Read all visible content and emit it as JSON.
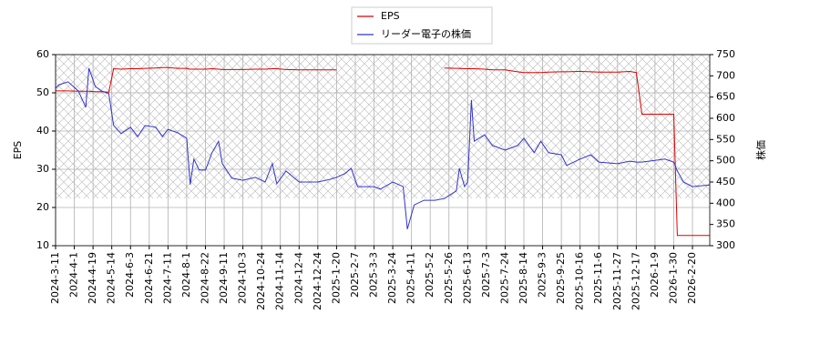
{
  "chart_data": {
    "type": "line",
    "x": [
      "2024-03-11",
      "2024-03-15",
      "2024-03-25",
      "2024-04-05",
      "2024-04-12",
      "2024-04-15",
      "2024-04-22",
      "2024-05-01",
      "2024-05-10",
      "2024-05-16",
      "2024-05-24",
      "2024-06-03",
      "2024-06-10",
      "2024-06-17",
      "2024-06-28",
      "2024-07-05",
      "2024-07-11",
      "2024-07-22",
      "2024-08-01",
      "2024-08-05",
      "2024-08-09",
      "2024-08-15",
      "2024-08-22",
      "2024-08-29",
      "2024-09-05",
      "2024-09-09",
      "2024-09-20",
      "2024-10-03",
      "2024-10-17",
      "2024-10-28",
      "2024-11-05",
      "2024-11-10",
      "2024-11-20",
      "2024-12-04",
      "2024-12-24",
      "2025-01-10",
      "2025-01-20",
      "2025-01-28",
      "2025-02-03",
      "2025-02-10",
      "2025-03-03",
      "2025-03-10",
      "2025-03-24",
      "2025-04-03",
      "2025-04-07",
      "2025-04-14",
      "2025-04-25",
      "2025-05-08",
      "2025-05-20",
      "2025-06-02",
      "2025-06-05",
      "2025-06-10",
      "2025-06-13",
      "2025-06-17",
      "2025-06-20",
      "2025-07-01",
      "2025-07-10",
      "2025-07-24",
      "2025-08-07",
      "2025-08-14",
      "2025-08-25",
      "2025-09-01",
      "2025-09-10",
      "2025-09-25",
      "2025-10-01",
      "2025-10-16",
      "2025-10-28",
      "2025-11-06",
      "2025-11-27",
      "2025-12-10",
      "2025-12-17",
      "2025-12-24",
      "2026-01-09",
      "2026-01-20",
      "2026-01-30",
      "2026-02-03",
      "2026-02-10",
      "2026-02-20",
      "2026-03-11"
    ],
    "series": [
      {
        "name": "EPS",
        "color": "#dd0000",
        "axis": "y",
        "values": [
          50.5,
          50.5,
          50.5,
          50.4,
          50.4,
          50.4,
          50.3,
          50.3,
          50.2,
          56.3,
          56.2,
          56.3,
          56.3,
          56.4,
          56.5,
          56.6,
          56.6,
          56.4,
          56.4,
          56.2,
          56.2,
          56.2,
          56.2,
          56.3,
          56.2,
          56.1,
          56.1,
          56.1,
          56.2,
          56.2,
          56.3,
          56.3,
          56.1,
          56.0,
          56.0,
          56.0,
          56.0,
          null,
          null,
          null,
          null,
          null,
          null,
          null,
          null,
          null,
          null,
          null,
          56.5,
          56.4,
          56.4,
          56.3,
          56.3,
          56.3,
          56.3,
          56.2,
          56.0,
          56.0,
          55.5,
          55.3,
          55.3,
          55.3,
          55.4,
          55.5,
          55.5,
          55.6,
          55.5,
          55.4,
          55.4,
          55.6,
          55.3,
          44.4,
          44.4,
          44.4,
          44.4,
          12.7,
          12.7,
          12.7,
          12.7
        ]
      },
      {
        "name": "リーダー電子の株価",
        "color": "#3333cc",
        "axis": "y2",
        "values": [
          671,
          679,
          686,
          664,
          626,
          718,
          675,
          664,
          658,
          583,
          564,
          579,
          557,
          583,
          579,
          557,
          574,
          566,
          553,
          444,
          504,
          478,
          478,
          519,
          546,
          493,
          459,
          454,
          461,
          450,
          493,
          446,
          476,
          450,
          450,
          456,
          461,
          470,
          482,
          439,
          439,
          433,
          450,
          439,
          339,
          396,
          407,
          407,
          411,
          429,
          482,
          439,
          450,
          643,
          546,
          561,
          536,
          525,
          536,
          553,
          519,
          546,
          519,
          514,
          489,
          504,
          514,
          497,
          493,
          499,
          497,
          497,
          501,
          504,
          497,
          476,
          450,
          439,
          443
        ]
      }
    ],
    "ylabel": "EPS",
    "y2label": "株価",
    "ylim": [
      10,
      60
    ],
    "yticks": [
      10,
      20,
      30,
      40,
      50,
      60
    ],
    "y2lim": [
      300,
      750
    ],
    "y2ticks": [
      300,
      350,
      400,
      450,
      500,
      550,
      600,
      650,
      700,
      750
    ],
    "xlim": [
      "2024-03-11",
      "2026-03-11"
    ],
    "xticks": [
      {
        "value": "2024-03-11",
        "label": "2024-3-11"
      },
      {
        "value": "2024-04-01",
        "label": "2024-4-1"
      },
      {
        "value": "2024-04-19",
        "label": "2024-4-19"
      },
      {
        "value": "2024-05-14",
        "label": "2024-5-14"
      },
      {
        "value": "2024-06-03",
        "label": "2024-6-3"
      },
      {
        "value": "2024-06-21",
        "label": "2024-6-21"
      },
      {
        "value": "2024-07-11",
        "label": "2024-7-11"
      },
      {
        "value": "2024-08-01",
        "label": "2024-8-1"
      },
      {
        "value": "2024-08-22",
        "label": "2024-8-22"
      },
      {
        "value": "2024-09-11",
        "label": "2024-9-11"
      },
      {
        "value": "2024-10-03",
        "label": "2024-10-3"
      },
      {
        "value": "2024-10-24",
        "label": "2024-10-24"
      },
      {
        "value": "2024-11-14",
        "label": "2024-11-14"
      },
      {
        "value": "2024-12-04",
        "label": "2024-12-4"
      },
      {
        "value": "2024-12-24",
        "label": "2024-12-24"
      },
      {
        "value": "2025-01-20",
        "label": "2025-1-20"
      },
      {
        "value": "2025-02-07",
        "label": "2025-2-7"
      },
      {
        "value": "2025-03-03",
        "label": "2025-3-3"
      },
      {
        "value": "2025-03-24",
        "label": "2025-3-24"
      },
      {
        "value": "2025-04-11",
        "label": "2025-4-11"
      },
      {
        "value": "2025-05-02",
        "label": "2025-5-2"
      },
      {
        "value": "2025-05-26",
        "label": "2025-5-26"
      },
      {
        "value": "2025-06-13",
        "label": "2025-6-13"
      },
      {
        "value": "2025-07-03",
        "label": "2025-7-3"
      },
      {
        "value": "2025-07-24",
        "label": "2025-7-24"
      },
      {
        "value": "2025-08-14",
        "label": "2025-8-14"
      },
      {
        "value": "2025-09-03",
        "label": "2025-9-3"
      },
      {
        "value": "2025-09-25",
        "label": "2025-9-25"
      },
      {
        "value": "2025-10-16",
        "label": "2025-10-16"
      },
      {
        "value": "2025-11-06",
        "label": "2025-11-6"
      },
      {
        "value": "2025-11-27",
        "label": "2025-11-27"
      },
      {
        "value": "2025-12-17",
        "label": "2025-12-17"
      },
      {
        "value": "2026-01-09",
        "label": "2026-1-9"
      },
      {
        "value": "2026-01-30",
        "label": "2026-1-30"
      },
      {
        "value": "2026-02-20",
        "label": "2026-2-20"
      }
    ],
    "grid": true
  }
}
